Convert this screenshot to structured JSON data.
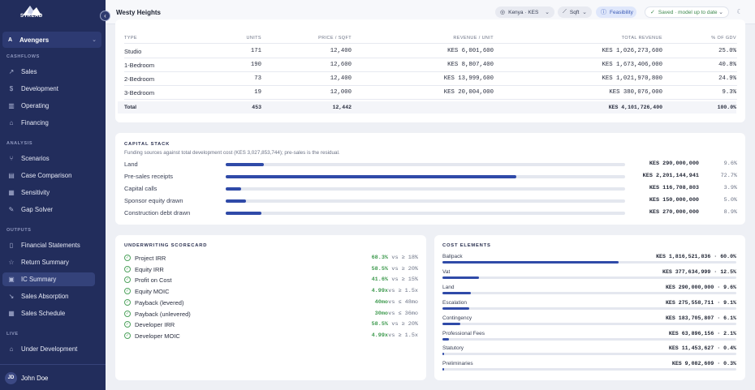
{
  "brand": {
    "name": "STREAD"
  },
  "workspace": {
    "badge": "A",
    "name": "Avengers"
  },
  "nav": {
    "sections": [
      {
        "title": "CASHFLOWS",
        "items": [
          {
            "label": "Sales",
            "icon": "trend-up-icon",
            "glyph": "↗"
          },
          {
            "label": "Development",
            "icon": "dollar-icon",
            "glyph": "$"
          },
          {
            "label": "Operating",
            "icon": "bar-chart-icon",
            "glyph": "▥"
          },
          {
            "label": "Financing",
            "icon": "bank-icon",
            "glyph": "⌂"
          }
        ]
      },
      {
        "title": "ANALYSIS",
        "items": [
          {
            "label": "Scenarios",
            "icon": "branch-icon",
            "glyph": "⑂"
          },
          {
            "label": "Case Comparison",
            "icon": "columns-icon",
            "glyph": "▤"
          },
          {
            "label": "Sensitivity",
            "icon": "grid-icon",
            "glyph": "▦"
          },
          {
            "label": "Gap Solver",
            "icon": "wrench-icon",
            "glyph": "✎"
          }
        ]
      },
      {
        "title": "OUTPUTS",
        "items": [
          {
            "label": "Financial Statements",
            "icon": "document-icon",
            "glyph": "▯"
          },
          {
            "label": "Return Summary",
            "icon": "star-icon",
            "glyph": "☆"
          },
          {
            "label": "IC Summary",
            "icon": "clipboard-icon",
            "glyph": "▣",
            "active": true
          },
          {
            "label": "Sales Absorption",
            "icon": "line-chart-icon",
            "glyph": "↘"
          },
          {
            "label": "Sales Schedule",
            "icon": "calendar-icon",
            "glyph": "▦"
          }
        ]
      },
      {
        "title": "LIVE",
        "items": [
          {
            "label": "Under Development",
            "icon": "building-icon",
            "glyph": "⌂"
          }
        ]
      }
    ]
  },
  "user": {
    "initials": "JD",
    "name": "John Doe"
  },
  "topbar": {
    "title": "Westy Heights",
    "region": "Kenya · KES",
    "unit": "Sqft",
    "mode": "Feasibility",
    "status": "Saved · model up to date"
  },
  "unit_mix": {
    "headers": [
      "TYPE",
      "UNITS",
      "PRICE / SQFT",
      "REVENUE / UNIT",
      "TOTAL REVENUE",
      "% OF GDV"
    ],
    "rows": [
      {
        "type": "Studio",
        "units": "171",
        "price": "12,400",
        "rev_unit": "KES 6,001,600",
        "total": "KES 1,026,273,600",
        "pct": "25.0%"
      },
      {
        "type": "1-Bedroom",
        "units": "190",
        "price": "12,600",
        "rev_unit": "KES 8,807,400",
        "total": "KES 1,673,406,000",
        "pct": "40.8%"
      },
      {
        "type": "2-Bedroom",
        "units": "73",
        "price": "12,400",
        "rev_unit": "KES 13,999,600",
        "total": "KES 1,021,970,800",
        "pct": "24.9%"
      },
      {
        "type": "3-Bedroom",
        "units": "19",
        "price": "12,000",
        "rev_unit": "KES 20,004,000",
        "total": "KES 380,076,000",
        "pct": "9.3%"
      }
    ],
    "total": {
      "label": "Total",
      "units": "453",
      "price": "12,442",
      "total": "KES 4,101,726,400",
      "pct": "100.0%"
    }
  },
  "capital_stack": {
    "title": "CAPITAL STACK",
    "subtitle": "Funding sources against total development cost (KES 3,027,853,744); pre-sales is the residual.",
    "rows": [
      {
        "label": "Land",
        "amount": "KES 290,000,000",
        "pct": "9.6%",
        "share": 0.096
      },
      {
        "label": "Pre-sales receipts",
        "amount": "KES 2,201,144,941",
        "pct": "72.7%",
        "share": 0.727
      },
      {
        "label": "Capital calls",
        "amount": "KES 116,708,803",
        "pct": "3.9%",
        "share": 0.039
      },
      {
        "label": "Sponsor equity drawn",
        "amount": "KES 150,000,000",
        "pct": "5.0%",
        "share": 0.05
      },
      {
        "label": "Construction debt drawn",
        "amount": "KES 270,000,000",
        "pct": "8.9%",
        "share": 0.089
      }
    ]
  },
  "scorecard": {
    "title": "UNDERWRITING SCORECARD",
    "rows": [
      {
        "label": "Project IRR",
        "value": "68.3%",
        "target": "vs ≥ 18%"
      },
      {
        "label": "Equity IRR",
        "value": "58.5%",
        "target": "vs ≥ 20%"
      },
      {
        "label": "Profit on Cost",
        "value": "41.6%",
        "target": "vs ≥ 15%"
      },
      {
        "label": "Equity MOIC",
        "value": "4.99x",
        "target": "vs ≥ 1.5x"
      },
      {
        "label": "Payback (levered)",
        "value": "40mo",
        "target": "vs ≤ 48mo"
      },
      {
        "label": "Payback (unlevered)",
        "value": "30mo",
        "target": "vs ≤ 36mo"
      },
      {
        "label": "Developer IRR",
        "value": "58.5%",
        "target": "vs ≥ 20%"
      },
      {
        "label": "Developer MOIC",
        "value": "4.99x",
        "target": "vs ≥ 1.5x"
      }
    ]
  },
  "cost_elements": {
    "title": "COST ELEMENTS",
    "rows": [
      {
        "label": "Ballpack",
        "amount": "KES 1,816,521,836 · 60.0%",
        "share": 0.6
      },
      {
        "label": "Vat",
        "amount": "KES 377,634,999 · 12.5%",
        "share": 0.125
      },
      {
        "label": "Land",
        "amount": "KES 290,000,000 · 9.6%",
        "share": 0.096
      },
      {
        "label": "Escalation",
        "amount": "KES 275,558,711 · 9.1%",
        "share": 0.091
      },
      {
        "label": "Contingency",
        "amount": "KES 183,705,807 · 6.1%",
        "share": 0.061
      },
      {
        "label": "Professional Fees",
        "amount": "KES 63,896,156 · 2.1%",
        "share": 0.021
      },
      {
        "label": "Statutory",
        "amount": "KES 11,453,627 · 0.4%",
        "share": 0.004
      },
      {
        "label": "Preliminaries",
        "amount": "KES 9,082,609 · 0.3%",
        "share": 0.003
      }
    ]
  }
}
